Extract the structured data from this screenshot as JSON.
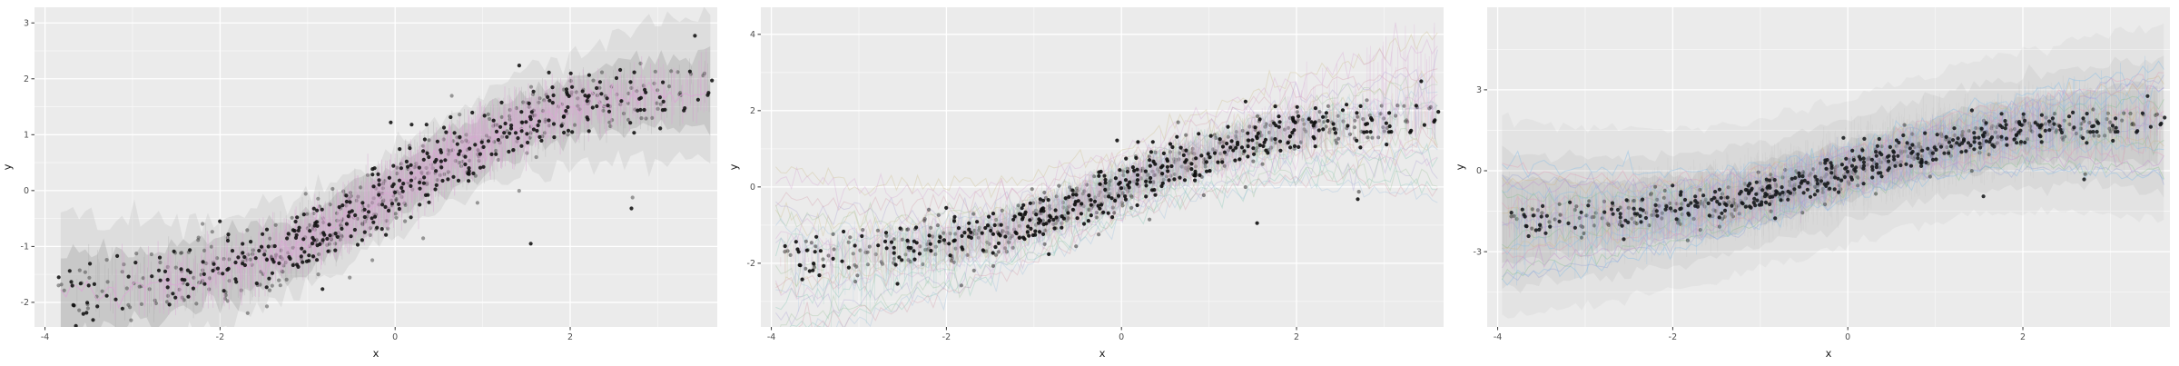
{
  "page": {
    "background": "#ffffff"
  },
  "chart_data": [
    {
      "id": "panel-1",
      "type": "scatter",
      "title": "",
      "xlabel": "x",
      "ylabel": "y",
      "xlim": [
        -4.12,
        3.68
      ],
      "ylim": [
        -2.44,
        3.28
      ],
      "x_ticks": [
        -4,
        -2,
        0,
        2
      ],
      "y_ticks": [
        -2,
        -1,
        0,
        1,
        2,
        3
      ],
      "grid": true,
      "legend": "none",
      "panel_bg": "#ebebeb",
      "grid_major_color": "#ffffff",
      "grid_minor_color": "#f7f7f7",
      "tick_label_color": "#4d4d4d",
      "axis_title_color": "#1a1a1a",
      "trend": {
        "type": "tanh",
        "amplitude": 1.9,
        "rate": 0.5
      },
      "trend_points": {
        "x": [
          -4,
          -3,
          -2,
          -1,
          0,
          1,
          2,
          3,
          3.5
        ],
        "y": [
          -1.83,
          -1.72,
          -1.45,
          -0.88,
          0,
          0.88,
          1.45,
          1.72,
          1.79
        ]
      },
      "scatter": {
        "n": 760,
        "seed": 11,
        "x_sd": 1.75,
        "x_range": [
          -3.85,
          3.58
        ],
        "noise_sd": 0.32,
        "color_back": "#3f3f3f",
        "opacity_back": 0.5,
        "color_front": "#101010",
        "opacity_front": 0.88,
        "radius": 2.1,
        "front_fraction": 0.45
      },
      "extra_points": [
        [
          1.55,
          -0.95
        ],
        [
          2.7,
          -0.32
        ],
        [
          3.58,
          1.75
        ],
        [
          3.62,
          1.97
        ],
        [
          -0.05,
          1.22
        ]
      ],
      "overlays": [
        {
          "kind": "ribbon",
          "layer": "under",
          "color": "#969696",
          "alpha": 0.3,
          "half_width": 0.5,
          "edge_grow": 0.55,
          "x_span": [
            -3.82,
            3.62
          ],
          "seed": 21
        },
        {
          "kind": "ribbon",
          "layer": "under",
          "color": "#a3a3a3",
          "alpha": 0.2,
          "half_width": 0.82,
          "edge_grow": 0.8,
          "x_span": [
            -3.82,
            3.62
          ],
          "seed": 22
        },
        {
          "kind": "spikes",
          "layer": "under",
          "color": "#9e9e9e",
          "alpha": 0.28,
          "n": 800,
          "height": 0.55,
          "center": 0,
          "x_sd": 1.8,
          "x_span": [
            -3.82,
            3.6
          ],
          "seed": 23
        },
        {
          "kind": "spikes",
          "layer": "over",
          "color": "#d9a6d4",
          "alpha": 0.55,
          "n": 1250,
          "height": 0.5,
          "center": 0.3,
          "x_sd": 1.6,
          "x_span": [
            -3.3,
            3.58
          ],
          "seed": 24
        },
        {
          "kind": "lines",
          "layer": "over",
          "color": "#d9a6d4",
          "alpha": 0.9,
          "offsets": [
            0
          ],
          "noise": 0.1,
          "x_span": [
            -3.82,
            3.6
          ],
          "seed": 25
        }
      ]
    },
    {
      "id": "panel-2",
      "type": "scatter",
      "title": "",
      "xlabel": "x",
      "ylabel": "y",
      "xlim": [
        -4.12,
        3.68
      ],
      "ylim": [
        -3.67,
        4.71
      ],
      "x_ticks": [
        -4,
        -2,
        0,
        2
      ],
      "y_ticks": [
        -2,
        0,
        2,
        4
      ],
      "grid": true,
      "legend": "none",
      "panel_bg": "#ebebeb",
      "grid_major_color": "#ffffff",
      "grid_minor_color": "#f7f7f7",
      "tick_label_color": "#4d4d4d",
      "axis_title_color": "#1a1a1a",
      "trend": {
        "type": "tanh",
        "amplitude": 1.9,
        "rate": 0.5
      },
      "trend_points": {
        "x": [
          -4,
          -3,
          -2,
          -1,
          0,
          1,
          2,
          3,
          3.5
        ],
        "y": [
          -1.83,
          -1.72,
          -1.45,
          -0.88,
          0,
          0.88,
          1.45,
          1.72,
          1.79
        ]
      },
      "scatter": {
        "n": 760,
        "seed": 11,
        "x_sd": 1.75,
        "x_range": [
          -3.85,
          3.58
        ],
        "noise_sd": 0.32,
        "color_back": "#2e2e2e",
        "opacity_back": 0.55,
        "color_front": "#0d0d0d",
        "opacity_front": 0.9,
        "radius": 2.1,
        "front_fraction": 0.45
      },
      "extra_points": [
        [
          1.55,
          -0.95
        ],
        [
          2.7,
          -0.32
        ],
        [
          3.58,
          1.75
        ],
        [
          3.62,
          1.97
        ],
        [
          -0.05,
          1.22
        ]
      ],
      "overlays": [
        {
          "kind": "lines",
          "layer": "under",
          "color": "#cbbd8a",
          "alpha": 0.35,
          "offsets": [
            -0.6,
            0.8,
            1.8
          ],
          "noise": 0.16,
          "x_span": [
            -3.95,
            3.66
          ],
          "seed": 31
        },
        {
          "kind": "lines",
          "layer": "under",
          "color": "#82c7b2",
          "alpha": 0.35,
          "offsets": [
            -1.5,
            -0.9,
            0.3
          ],
          "noise": 0.16,
          "x_span": [
            -3.95,
            3.66
          ],
          "seed": 32
        },
        {
          "kind": "lines",
          "layer": "under",
          "color": "#9dc0e0",
          "alpha": 0.35,
          "offsets": [
            -1.7,
            -0.7,
            0.5
          ],
          "noise": 0.16,
          "x_span": [
            -3.95,
            3.66
          ],
          "seed": 33
        },
        {
          "kind": "lines",
          "layer": "under",
          "color": "#a89bd2",
          "alpha": 0.32,
          "offsets": [
            -1.2,
            0.2,
            1.0
          ],
          "noise": 0.16,
          "x_span": [
            -3.95,
            3.66
          ],
          "seed": 34
        },
        {
          "kind": "lines",
          "layer": "under",
          "color": "#97c296",
          "alpha": 0.32,
          "offsets": [
            -1.4,
            -0.3,
            0.8
          ],
          "noise": 0.16,
          "x_span": [
            -3.95,
            3.66
          ],
          "seed": 35
        },
        {
          "kind": "lines",
          "layer": "under",
          "color": "#d494a4",
          "alpha": 0.32,
          "offsets": [
            -1.6,
            -0.5,
            1.2
          ],
          "noise": 0.16,
          "x_span": [
            -3.95,
            3.66
          ],
          "seed": 36
        },
        {
          "kind": "lines",
          "layer": "under",
          "color": "#d7a3d3",
          "alpha": 0.35,
          "offsets": [
            -0.8,
            0.5,
            1.6
          ],
          "noise": 0.16,
          "x_span": [
            -3.95,
            3.66
          ],
          "seed": 37
        },
        {
          "kind": "spikes",
          "layer": "over",
          "color": "#cbbd8a",
          "alpha": 0.26,
          "n": 520,
          "height": 0.6,
          "center": 0,
          "x_sd": 1.8,
          "x_span": [
            -3.9,
            3.6
          ],
          "seed": 41
        },
        {
          "kind": "spikes",
          "layer": "over",
          "color": "#82c7b2",
          "alpha": 0.26,
          "n": 520,
          "height": 0.55,
          "center": 0,
          "x_sd": 1.8,
          "x_span": [
            -3.9,
            3.6
          ],
          "flare_left": 0.7,
          "seed": 42
        },
        {
          "kind": "spikes",
          "layer": "over",
          "color": "#9dc0e0",
          "alpha": 0.26,
          "n": 520,
          "height": 0.55,
          "center": 0,
          "x_sd": 1.8,
          "x_span": [
            -3.9,
            3.6
          ],
          "flare_left": 0.6,
          "seed": 43
        },
        {
          "kind": "spikes",
          "layer": "over",
          "color": "#a89bd2",
          "alpha": 0.24,
          "n": 520,
          "height": 0.55,
          "center": 0,
          "x_sd": 1.8,
          "x_span": [
            -3.9,
            3.6
          ],
          "seed": 44
        },
        {
          "kind": "spikes",
          "layer": "over",
          "color": "#97c296",
          "alpha": 0.24,
          "n": 520,
          "height": 0.55,
          "center": 0,
          "x_sd": 1.8,
          "x_span": [
            -3.9,
            3.6
          ],
          "seed": 45
        },
        {
          "kind": "spikes",
          "layer": "over",
          "color": "#d494a4",
          "alpha": 0.24,
          "n": 520,
          "height": 0.55,
          "center": 0,
          "x_sd": 1.8,
          "x_span": [
            -3.9,
            3.6
          ],
          "seed": 46
        },
        {
          "kind": "spikes",
          "layer": "over",
          "color": "#d7a3d3",
          "alpha": 0.3,
          "n": 620,
          "height": 0.6,
          "center": 0.4,
          "x_sd": 1.8,
          "x_span": [
            -3.9,
            3.62
          ],
          "flare_right": 1.0,
          "seed": 47
        }
      ]
    },
    {
      "id": "panel-3",
      "type": "scatter",
      "title": "",
      "xlabel": "x",
      "ylabel": "y",
      "xlim": [
        -4.12,
        3.68
      ],
      "ylim": [
        -5.79,
        6.06
      ],
      "x_ticks": [
        -4,
        -2,
        0,
        2
      ],
      "y_ticks": [
        -3,
        0,
        3
      ],
      "grid": true,
      "legend": "none",
      "panel_bg": "#ebebeb",
      "grid_major_color": "#ffffff",
      "grid_minor_color": "#f7f7f7",
      "tick_label_color": "#4d4d4d",
      "axis_title_color": "#1a1a1a",
      "trend": {
        "type": "tanh",
        "amplitude": 1.9,
        "rate": 0.5
      },
      "trend_points": {
        "x": [
          -4,
          -3,
          -2,
          -1,
          0,
          1,
          2,
          3,
          3.5
        ],
        "y": [
          -1.83,
          -1.72,
          -1.45,
          -0.88,
          0,
          0.88,
          1.45,
          1.72,
          1.79
        ]
      },
      "scatter": {
        "n": 760,
        "seed": 11,
        "x_sd": 1.75,
        "x_range": [
          -3.85,
          3.58
        ],
        "noise_sd": 0.32,
        "color_back": "#3a4038",
        "opacity_back": 0.6,
        "color_front": "#15181a",
        "opacity_front": 0.88,
        "radius": 2.1,
        "front_fraction": 0.45
      },
      "extra_points": [
        [
          1.55,
          -0.95
        ],
        [
          2.7,
          -0.32
        ],
        [
          3.58,
          1.75
        ],
        [
          3.62,
          1.97
        ],
        [
          -0.05,
          1.22
        ]
      ],
      "overlays": [
        {
          "kind": "ribbon",
          "layer": "under",
          "color": "#9c9c9c",
          "alpha": 0.2,
          "half_width": 1.1,
          "edge_grow": 0.35,
          "x_span": [
            -3.95,
            3.55
          ],
          "seed": 51
        },
        {
          "kind": "ribbon",
          "layer": "under",
          "color": "#9c9c9c",
          "alpha": 0.13,
          "half_width": 1.9,
          "edge_grow": 0.35,
          "x_span": [
            -3.95,
            3.66
          ],
          "seed": 52
        },
        {
          "kind": "ribbon",
          "layer": "under",
          "color": "#9c9c9c",
          "alpha": 0.09,
          "half_width": 2.7,
          "edge_grow": 0.4,
          "x_span": [
            -3.95,
            3.66
          ],
          "seed": 53
        },
        {
          "kind": "spikes",
          "layer": "under",
          "color": "#9a9a9a",
          "alpha": 0.1,
          "n": 1000,
          "height": 1.7,
          "center": 0,
          "x_sd": 2.0,
          "x_span": [
            -3.95,
            3.6
          ],
          "seed": 54
        },
        {
          "kind": "lines",
          "layer": "under",
          "color": "#84bce6",
          "alpha": 0.42,
          "offsets": [
            -1.8,
            -0.8,
            0.9,
            1.7
          ],
          "noise": 0.15,
          "x_span": [
            -3.95,
            3.66
          ],
          "seed": 55
        },
        {
          "kind": "lines",
          "layer": "under",
          "color": "#86c08e",
          "alpha": 0.4,
          "offsets": [
            -1.5,
            -0.6,
            0.7
          ],
          "noise": 0.15,
          "x_span": [
            -3.95,
            3.66
          ],
          "seed": 56
        },
        {
          "kind": "lines",
          "layer": "under",
          "color": "#e09cb6",
          "alpha": 0.4,
          "offsets": [
            -1.0,
            0.5,
            1.5
          ],
          "noise": 0.15,
          "x_span": [
            -3.95,
            3.66
          ],
          "seed": 57
        },
        {
          "kind": "lines",
          "layer": "under",
          "color": "#c48fd0",
          "alpha": 0.4,
          "offsets": [
            -1.3,
            0.1,
            1.1
          ],
          "noise": 0.15,
          "x_span": [
            -3.95,
            3.66
          ],
          "seed": 58
        },
        {
          "kind": "lines",
          "layer": "under",
          "color": "#d0b88a",
          "alpha": 0.4,
          "offsets": [
            -0.7,
            0.3,
            1.2
          ],
          "noise": 0.15,
          "x_span": [
            -3.95,
            3.66
          ],
          "seed": 59
        },
        {
          "kind": "lines",
          "layer": "under",
          "color": "#98a2d8",
          "alpha": 0.4,
          "offsets": [
            -1.7,
            -0.2,
            1.3
          ],
          "noise": 0.15,
          "x_span": [
            -3.95,
            3.66
          ],
          "seed": 60
        },
        {
          "kind": "spikes",
          "layer": "over",
          "color": "#84bce6",
          "alpha": 0.3,
          "n": 600,
          "height": 1.0,
          "center": 0,
          "x_sd": 1.9,
          "x_span": [
            -3.9,
            3.6
          ],
          "flare_right": 0.9,
          "flare_left": 0.9,
          "seed": 61
        },
        {
          "kind": "spikes",
          "layer": "over",
          "color": "#86c08e",
          "alpha": 0.28,
          "n": 480,
          "height": 0.95,
          "center": 0,
          "x_sd": 1.8,
          "x_span": [
            -3.9,
            3.6
          ],
          "seed": 62
        },
        {
          "kind": "spikes",
          "layer": "over",
          "color": "#e09cb6",
          "alpha": 0.28,
          "n": 480,
          "height": 0.9,
          "center": 0,
          "x_sd": 1.8,
          "x_span": [
            -3.9,
            3.6
          ],
          "seed": 63
        },
        {
          "kind": "spikes",
          "layer": "over",
          "color": "#c48fd0",
          "alpha": 0.3,
          "n": 520,
          "height": 0.95,
          "center": 0,
          "x_sd": 1.8,
          "x_span": [
            -3.9,
            3.6
          ],
          "seed": 64
        },
        {
          "kind": "spikes",
          "layer": "over",
          "color": "#d0b88a",
          "alpha": 0.24,
          "n": 400,
          "height": 0.9,
          "center": 0,
          "x_sd": 1.8,
          "x_span": [
            -3.9,
            3.6
          ],
          "seed": 65
        },
        {
          "kind": "spikes",
          "layer": "over",
          "color": "#98a2d8",
          "alpha": 0.32,
          "n": 560,
          "height": 1.0,
          "center": 0,
          "x_sd": 1.8,
          "x_span": [
            -3.9,
            3.6
          ],
          "seed": 66
        },
        {
          "kind": "spikes",
          "layer": "over",
          "color": "#9a9a9a",
          "alpha": 0.07,
          "n": 400,
          "height": 1.4,
          "center": 0,
          "x_sd": 2.0,
          "x_span": [
            -3.95,
            3.6
          ],
          "seed": 67
        }
      ]
    }
  ]
}
